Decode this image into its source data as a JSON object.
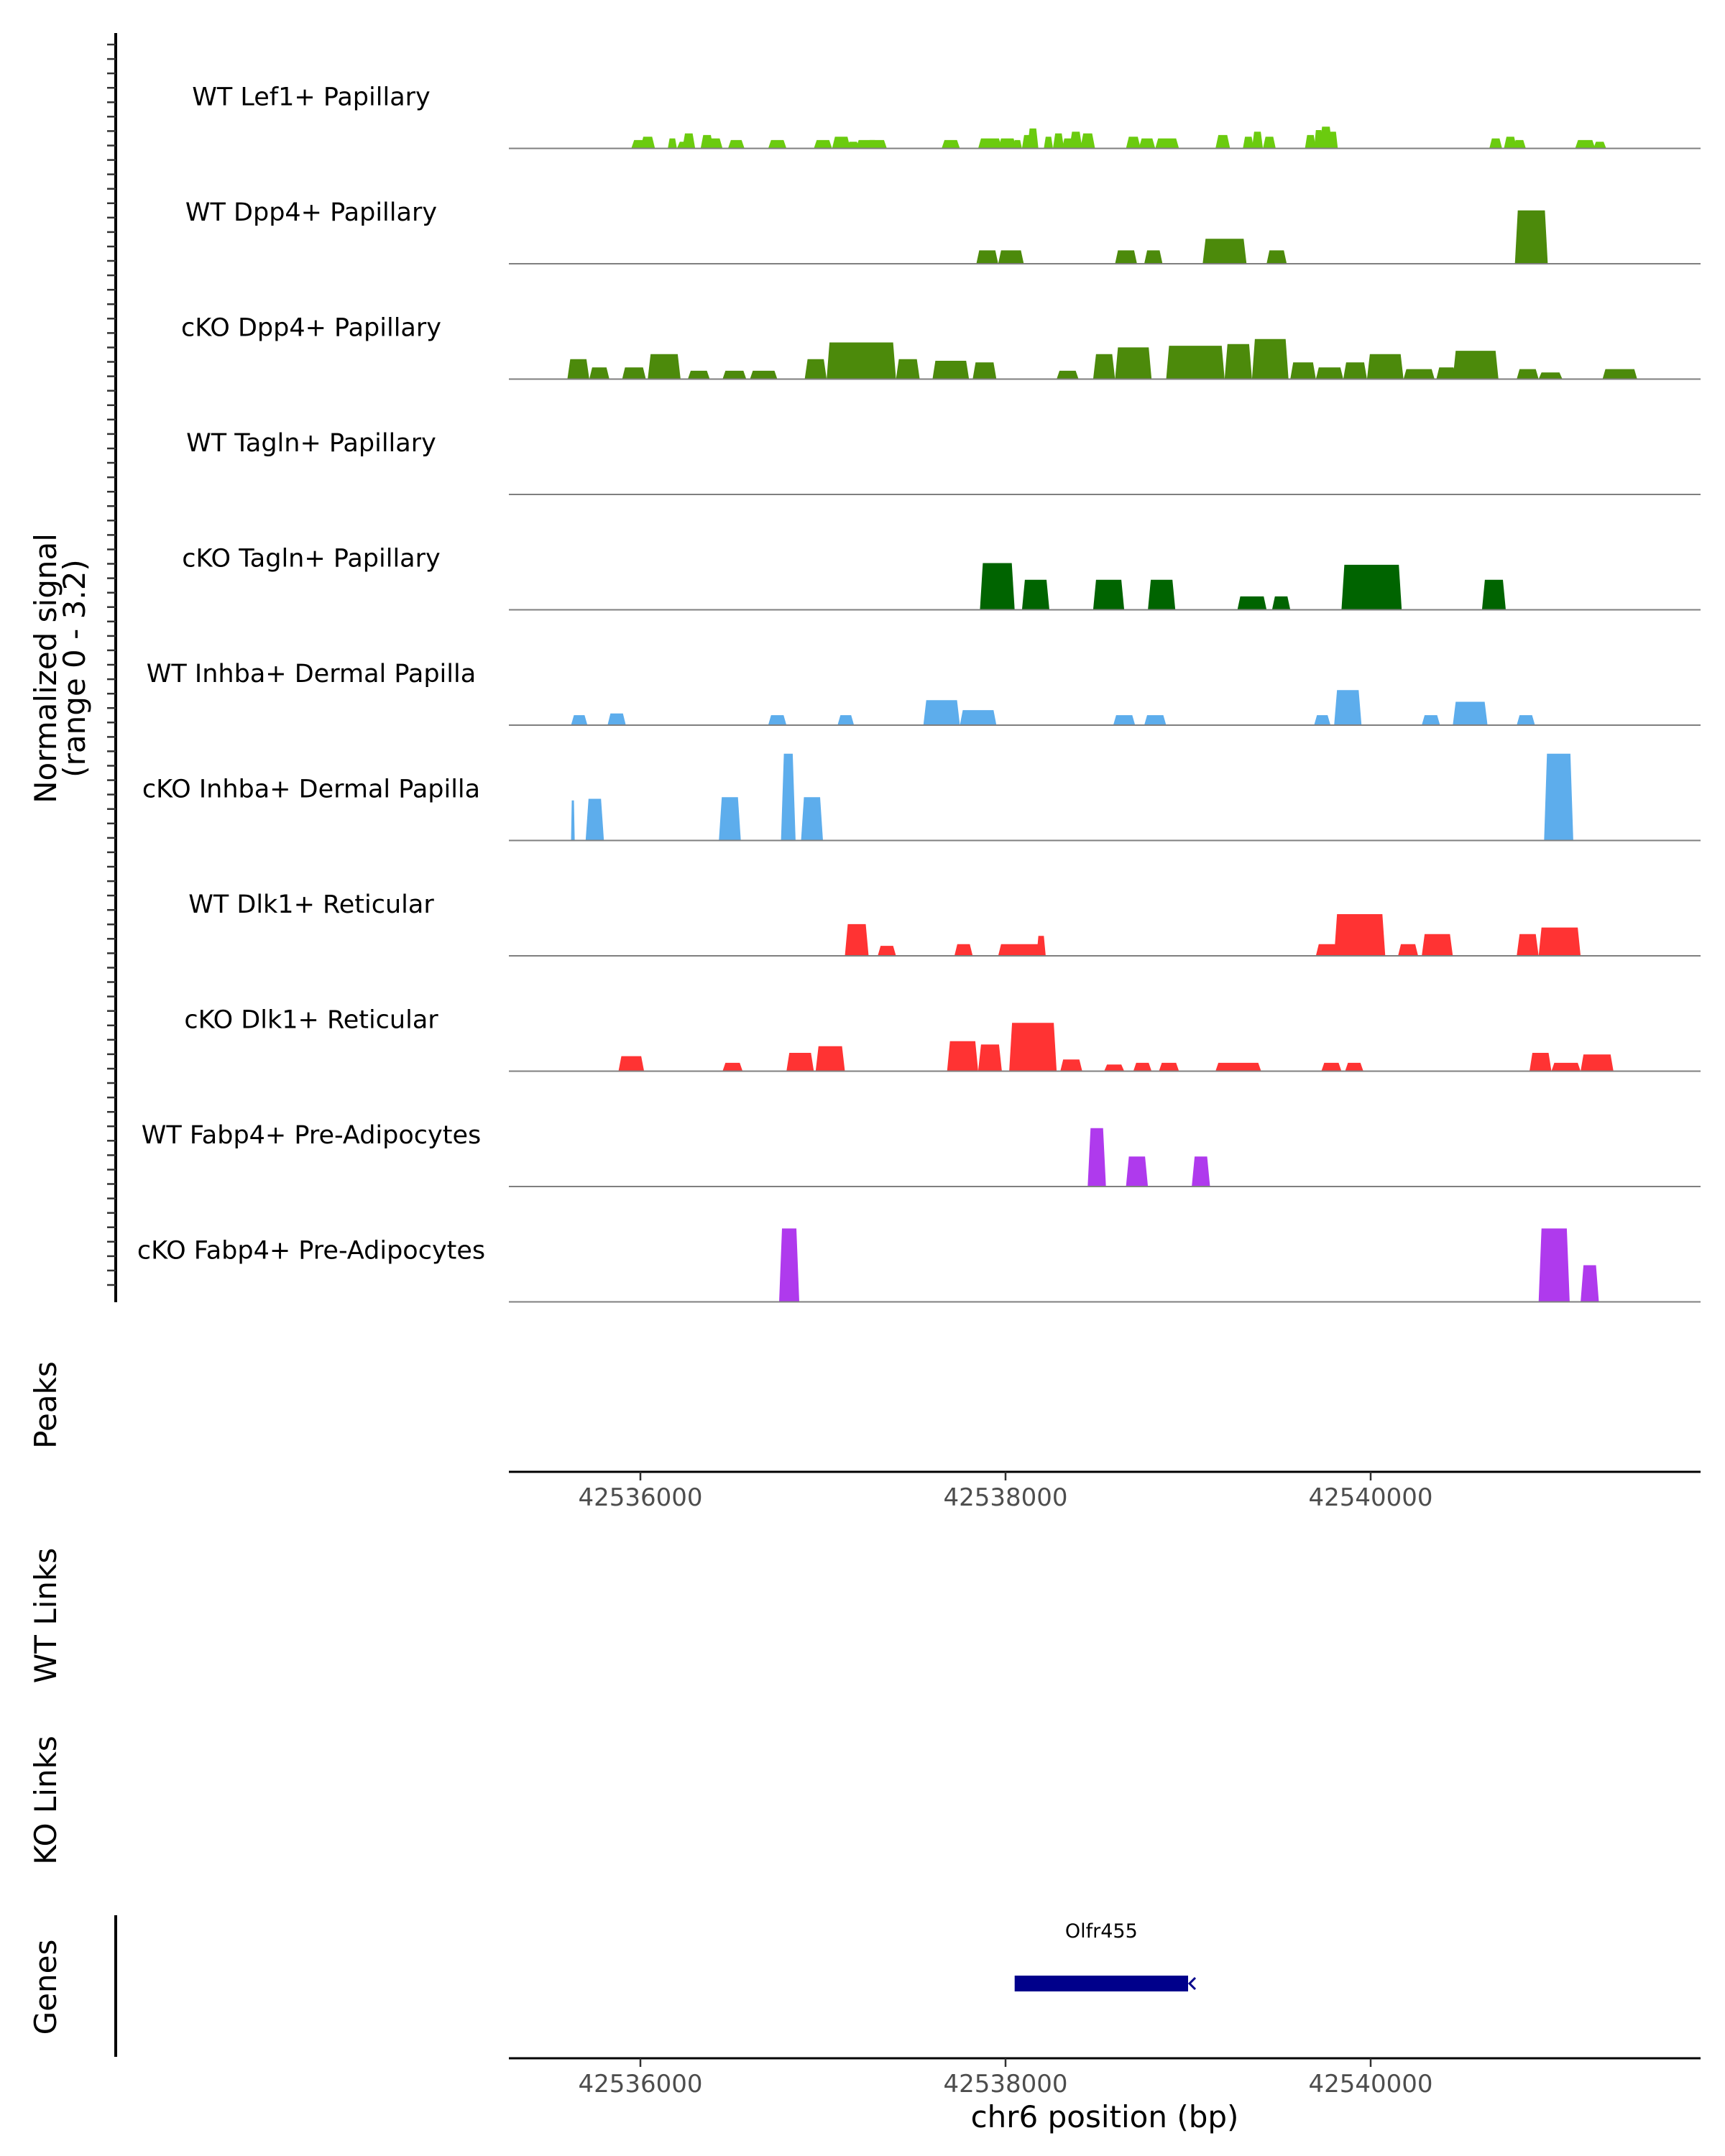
{
  "chart_data": {
    "type": "area",
    "title": "",
    "region": {
      "chromosome": "chr6",
      "start": 42535300,
      "end": 42541800
    },
    "y_axis_label": "Normalized signal",
    "y_range_label": "(range 0 - 3.2)",
    "ylim": [
      0,
      3.2
    ],
    "x_label": "chr6 position (bp)",
    "x_ticks": [
      42536000,
      42538000,
      42540000
    ],
    "x_tick_labels": [
      "42536000",
      "42538000",
      "42540000"
    ],
    "panel_labels": {
      "peaks": "Peaks",
      "wt_links": "WT Links",
      "ko_links": "KO Links",
      "genes": "Genes"
    },
    "genes": [
      {
        "name": "Olfr455",
        "start": 42538050,
        "end": 42539000,
        "strand": "-"
      }
    ],
    "tracks": [
      {
        "name": "WT Lef1+ Papillary",
        "color": "#6BCB0F",
        "peaks": [
          [
            42535950,
            42536050,
            0.25
          ],
          [
            42536000,
            42536080,
            0.35
          ],
          [
            42536150,
            42536200,
            0.3
          ],
          [
            42536200,
            42536280,
            0.2
          ],
          [
            42536230,
            42536300,
            0.45
          ],
          [
            42536330,
            42536400,
            0.4
          ],
          [
            42536370,
            42536450,
            0.3
          ],
          [
            42536480,
            42536570,
            0.25
          ],
          [
            42536700,
            42536800,
            0.25
          ],
          [
            42536950,
            42537050,
            0.25
          ],
          [
            42537050,
            42537150,
            0.35
          ],
          [
            42537130,
            42537200,
            0.2
          ],
          [
            42537180,
            42537300,
            0.25
          ],
          [
            42537240,
            42537350,
            0.25
          ],
          [
            42537650,
            42537750,
            0.25
          ],
          [
            42537850,
            42537980,
            0.3
          ],
          [
            42537960,
            42538060,
            0.3
          ],
          [
            42538040,
            42538090,
            0.25
          ],
          [
            42538090,
            42538150,
            0.4
          ],
          [
            42538120,
            42538180,
            0.6
          ],
          [
            42538210,
            42538260,
            0.35
          ],
          [
            42538260,
            42538320,
            0.45
          ],
          [
            42538310,
            42538370,
            0.3
          ],
          [
            42538350,
            42538420,
            0.5
          ],
          [
            42538410,
            42538490,
            0.45
          ],
          [
            42538660,
            42538740,
            0.35
          ],
          [
            42538730,
            42538820,
            0.3
          ],
          [
            42538820,
            42538950,
            0.3
          ],
          [
            42539150,
            42539230,
            0.4
          ],
          [
            42539300,
            42539360,
            0.35
          ],
          [
            42539350,
            42539410,
            0.5
          ],
          [
            42539410,
            42539480,
            0.35
          ],
          [
            42539640,
            42539700,
            0.4
          ],
          [
            42539690,
            42539740,
            0.55
          ],
          [
            42539720,
            42539790,
            0.65
          ],
          [
            42539770,
            42539820,
            0.5
          ],
          [
            42540650,
            42540720,
            0.3
          ],
          [
            42540730,
            42540800,
            0.35
          ],
          [
            42540780,
            42540850,
            0.25
          ],
          [
            42541120,
            42541230,
            0.25
          ],
          [
            42541220,
            42541290,
            0.2
          ]
        ]
      },
      {
        "name": "WT Dpp4+ Papillary",
        "color": "#4C8A0B",
        "peaks": [
          [
            42537840,
            42537960,
            0.4
          ],
          [
            42537960,
            42538100,
            0.4
          ],
          [
            42538600,
            42538720,
            0.4
          ],
          [
            42538760,
            42538860,
            0.4
          ],
          [
            42539080,
            42539320,
            0.75
          ],
          [
            42539430,
            42539540,
            0.4
          ],
          [
            42540790,
            42540970,
            1.6
          ]
        ]
      },
      {
        "name": "cKO Dpp4+ Papillary",
        "color": "#4C8A0B",
        "peaks": [
          [
            42535600,
            42535720,
            0.6
          ],
          [
            42535720,
            42535830,
            0.35
          ],
          [
            42535900,
            42536030,
            0.35
          ],
          [
            42536040,
            42536220,
            0.75
          ],
          [
            42536260,
            42536380,
            0.25
          ],
          [
            42536450,
            42536580,
            0.25
          ],
          [
            42536600,
            42536750,
            0.25
          ],
          [
            42536900,
            42537020,
            0.6
          ],
          [
            42537020,
            42537400,
            1.1
          ],
          [
            42537400,
            42537530,
            0.6
          ],
          [
            42537600,
            42537800,
            0.55
          ],
          [
            42537820,
            42537950,
            0.5
          ],
          [
            42538280,
            42538400,
            0.25
          ],
          [
            42538480,
            42538600,
            0.75
          ],
          [
            42538600,
            42538800,
            0.95
          ],
          [
            42538880,
            42539200,
            1.0
          ],
          [
            42539200,
            42539350,
            1.05
          ],
          [
            42539350,
            42539550,
            1.2
          ],
          [
            42539560,
            42539700,
            0.5
          ],
          [
            42539700,
            42539850,
            0.35
          ],
          [
            42539850,
            42539980,
            0.5
          ],
          [
            42539980,
            42540180,
            0.75
          ],
          [
            42540180,
            42540350,
            0.3
          ],
          [
            42540360,
            42540470,
            0.35
          ],
          [
            42540450,
            42540700,
            0.85
          ],
          [
            42540800,
            42540920,
            0.3
          ],
          [
            42540920,
            42541050,
            0.2
          ],
          [
            42541270,
            42541460,
            0.3
          ]
        ]
      },
      {
        "name": "WT Tagln+ Papillary",
        "color": "#006400",
        "peaks": []
      },
      {
        "name": "cKO Tagln+ Papillary",
        "color": "#006400",
        "peaks": [
          [
            42537860,
            42538050,
            1.4
          ],
          [
            42538090,
            42538240,
            0.9
          ],
          [
            42538480,
            42538650,
            0.9
          ],
          [
            42538780,
            42538930,
            0.9
          ],
          [
            42539270,
            42539430,
            0.4
          ],
          [
            42539460,
            42539560,
            0.4
          ],
          [
            42539840,
            42540170,
            1.35
          ],
          [
            42540610,
            42540740,
            0.9
          ]
        ]
      },
      {
        "name": "WT Inhba+ Dermal Papilla",
        "color": "#5DADEC",
        "peaks": [
          [
            42535620,
            42535710,
            0.3
          ],
          [
            42535820,
            42535920,
            0.35
          ],
          [
            42536700,
            42536800,
            0.3
          ],
          [
            42537080,
            42537170,
            0.3
          ],
          [
            42537550,
            42537750,
            0.75
          ],
          [
            42537750,
            42537950,
            0.45
          ],
          [
            42538590,
            42538710,
            0.3
          ],
          [
            42538760,
            42538880,
            0.3
          ],
          [
            42539690,
            42539780,
            0.3
          ],
          [
            42539800,
            42539950,
            1.05
          ],
          [
            42540280,
            42540380,
            0.3
          ],
          [
            42540450,
            42540640,
            0.7
          ],
          [
            42540800,
            42540900,
            0.3
          ]
        ]
      },
      {
        "name": "cKO Inhba+ Dermal Papilla",
        "color": "#5DADEC",
        "peaks": [
          [
            42535620,
            42535640,
            1.2
          ],
          [
            42535700,
            42535800,
            1.25
          ],
          [
            42536430,
            42536550,
            1.3
          ],
          [
            42536770,
            42536850,
            2.6
          ],
          [
            42536880,
            42537000,
            1.3
          ],
          [
            42540950,
            42541110,
            2.6
          ]
        ]
      },
      {
        "name": "WT Dlk1+ Reticular",
        "color": "#FF3333",
        "peaks": [
          [
            42537120,
            42537250,
            0.95
          ],
          [
            42537300,
            42537400,
            0.3
          ],
          [
            42537720,
            42537820,
            0.35
          ],
          [
            42537960,
            42538200,
            0.35
          ],
          [
            42538170,
            42538220,
            0.6
          ],
          [
            42539700,
            42539820,
            0.35
          ],
          [
            42539800,
            42540080,
            1.25
          ],
          [
            42540150,
            42540260,
            0.35
          ],
          [
            42540280,
            42540450,
            0.65
          ],
          [
            42540800,
            42540920,
            0.65
          ],
          [
            42540920,
            42541150,
            0.85
          ]
        ]
      },
      {
        "name": "cKO Dlk1+ Reticular",
        "color": "#FF3333",
        "peaks": [
          [
            42535880,
            42536020,
            0.45
          ],
          [
            42536450,
            42536560,
            0.25
          ],
          [
            42536800,
            42536950,
            0.55
          ],
          [
            42536960,
            42537120,
            0.75
          ],
          [
            42537680,
            42537850,
            0.9
          ],
          [
            42537850,
            42537980,
            0.8
          ],
          [
            42538020,
            42538280,
            1.45
          ],
          [
            42538300,
            42538420,
            0.35
          ],
          [
            42538540,
            42538650,
            0.2
          ],
          [
            42538700,
            42538800,
            0.25
          ],
          [
            42538840,
            42538950,
            0.25
          ],
          [
            42539150,
            42539400,
            0.25
          ],
          [
            42539730,
            42539840,
            0.25
          ],
          [
            42539860,
            42539960,
            0.25
          ],
          [
            42540870,
            42540990,
            0.55
          ],
          [
            42540990,
            42541150,
            0.25
          ],
          [
            42541150,
            42541330,
            0.5
          ]
        ]
      },
      {
        "name": "WT Fabp4+ Pre-Adipocytes",
        "color": "#AF3AED",
        "peaks": [
          [
            42538450,
            42538550,
            1.75
          ],
          [
            42538660,
            42538780,
            0.9
          ],
          [
            42539020,
            42539120,
            0.9
          ]
        ]
      },
      {
        "name": "cKO Fabp4+ Pre-Adipocytes",
        "color": "#AF3AED",
        "peaks": [
          [
            42536760,
            42536870,
            2.2
          ],
          [
            42540920,
            42541090,
            2.2
          ],
          [
            42541150,
            42541250,
            1.1
          ]
        ]
      }
    ]
  }
}
